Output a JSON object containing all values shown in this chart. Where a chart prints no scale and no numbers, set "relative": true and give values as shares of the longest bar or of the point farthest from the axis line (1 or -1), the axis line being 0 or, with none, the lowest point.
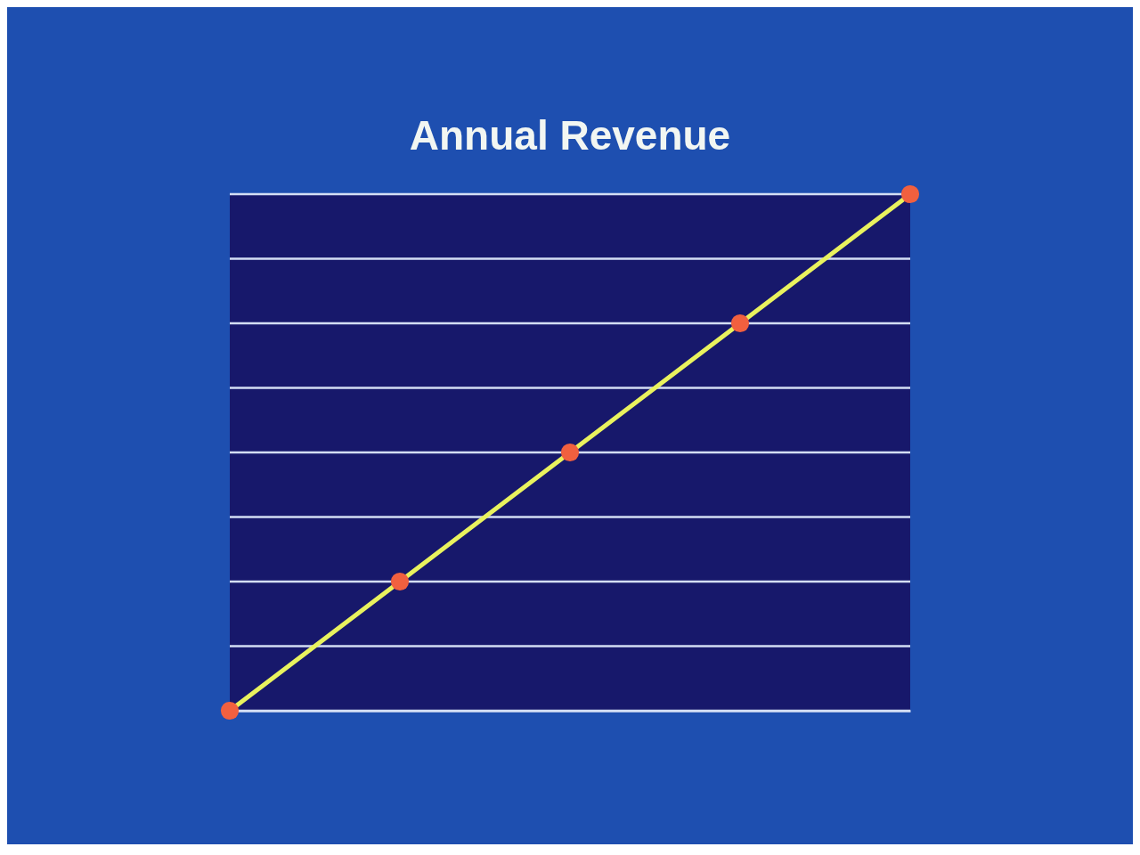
{
  "chart_data": {
    "type": "line",
    "title": "Annual Revenue",
    "relative": true,
    "categories": [
      null,
      null,
      null,
      null,
      null
    ],
    "grid": "y",
    "marker": "circle",
    "line_style": "solid",
    "series": [
      {
        "color": "#e9f25e",
        "values": [
          0,
          0.25,
          0.5,
          0.75,
          1
        ]
      }
    ]
  }
}
